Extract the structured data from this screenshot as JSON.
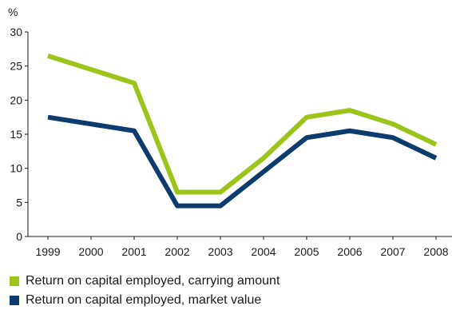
{
  "chart_data": {
    "type": "line",
    "ylabel": "%",
    "x": [
      "1999",
      "2000",
      "2001",
      "2002",
      "2003",
      "2004",
      "2005",
      "2006",
      "2007",
      "2008"
    ],
    "ylim": [
      0,
      30
    ],
    "yticks": [
      0,
      5,
      10,
      15,
      20,
      25,
      30
    ],
    "grid": false,
    "legend_position": "bottom",
    "series": [
      {
        "name": "Return on capital employed, carrying amount",
        "color": "#9dc41a",
        "values": [
          26.5,
          null,
          22.5,
          6.5,
          6.5,
          11.5,
          17.5,
          18.5,
          16.5,
          13.5
        ]
      },
      {
        "name": "Return on capital employed, market value",
        "color": "#0c3b6e",
        "values": [
          17.5,
          null,
          15.5,
          4.5,
          4.5,
          9.5,
          14.5,
          15.5,
          14.5,
          11.5
        ]
      }
    ]
  }
}
